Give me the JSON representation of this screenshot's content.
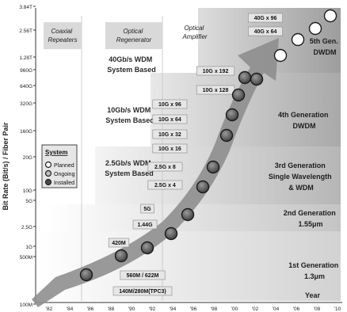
{
  "chart_data": {
    "type": "scatter",
    "title": "",
    "ylabel": "Bit Rate (Bit/s) / Fiber Pair",
    "xlabel": "Year",
    "y_scale": "log",
    "y_ticks": [
      "3.84T",
      "2.56T",
      "1.28T",
      "960G",
      "640G",
      "320G",
      "160G",
      "20G",
      "10G",
      "5G",
      "2.5G",
      "1G",
      "500M",
      "100M"
    ],
    "x_ticks": [
      "82",
      "84",
      "86",
      "88",
      "90",
      "92",
      "94",
      "96",
      "98",
      "00",
      "02",
      "04",
      "06",
      "08",
      "10"
    ],
    "legend": {
      "title": "System",
      "items": [
        {
          "label": "Planned",
          "style": "open"
        },
        {
          "label": "Ongoing",
          "style": "light"
        },
        {
          "label": "Installed",
          "style": "filled"
        }
      ],
      "placement": "left"
    },
    "eras": [
      {
        "label": "Coaxial Repeaters"
      },
      {
        "label": "Optical Regenerator"
      },
      {
        "label": "Optical Amplifier"
      }
    ],
    "regions": [
      {
        "label": "40Gb/s WDM System Based"
      },
      {
        "label": "10Gb/s WDM System Based"
      },
      {
        "label": "2.5Gb/s WDM System Based"
      }
    ],
    "generations": [
      {
        "line1": "1st Generation",
        "line2": "1.3μm"
      },
      {
        "line1": "2nd Generation",
        "line2": "1.55μm"
      },
      {
        "line1": "3rd Generation",
        "line2": "Single Wavelength",
        "line3": "& WDM"
      },
      {
        "line1": "4th Generation",
        "line2": "DWDM"
      },
      {
        "line1": "5th Gen.",
        "line2": "DWDM"
      }
    ],
    "series": [
      {
        "status": "installed",
        "points": [
          {
            "x": 1986,
            "y": 0.2,
            "label": "140M/280M(TPC3)"
          },
          {
            "x": 1988,
            "y": 0.42,
            "label": "420M"
          },
          {
            "x": 1990,
            "y": 0.56,
            "label": "560M / 622M"
          },
          {
            "x": 1992,
            "y": 1.44,
            "label": "1.44G"
          },
          {
            "x": 1994,
            "y": 5,
            "label": "5G"
          },
          {
            "x": 1996,
            "y": 10,
            "label": "2.5G x 4"
          },
          {
            "x": 1997,
            "y": 20,
            "label": "2.5G x 8"
          },
          {
            "x": 1998,
            "y": 160,
            "label": "10G x 16"
          },
          {
            "x": 1999,
            "y": 320,
            "label": "10G x 32"
          },
          {
            "x": 2000,
            "y": 640,
            "label": "10G x 64"
          },
          {
            "x": 2001,
            "y": 960,
            "label": "10G x 96"
          },
          {
            "x": 2002,
            "y": 1280,
            "label": "10G x 128"
          }
        ]
      },
      {
        "status": "planned",
        "points": [
          {
            "x": 2004,
            "y": 1920,
            "label": "10G x 192"
          },
          {
            "x": 2006,
            "y": 2560,
            "label": "40G x 64"
          },
          {
            "x": 2008,
            "y": 3000,
            "label": ""
          },
          {
            "x": 2010,
            "y": 3840,
            "label": "40G x 96"
          }
        ]
      }
    ],
    "colors": {
      "installed": "#4a4a4a",
      "planned": "#ffffff",
      "arrow": "#8c8c8c",
      "band_light": "#f2f2f2",
      "band_dark": "#c6c6c6",
      "label_box": "#e6e6e6",
      "era_box": "#d9d9d9"
    }
  }
}
